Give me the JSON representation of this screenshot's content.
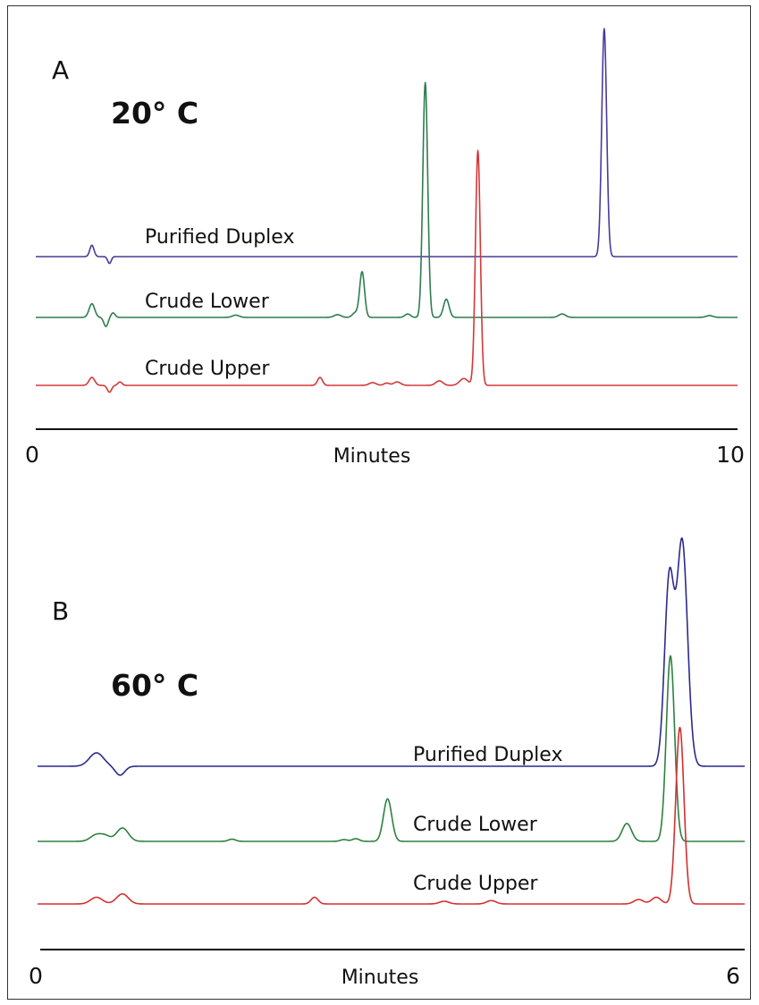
{
  "chart_data": [
    {
      "type": "line",
      "panel": "A",
      "title": "20° C",
      "xlabel": "Minutes",
      "x_ticks": [
        "0",
        "10"
      ],
      "xlim": [
        0,
        10
      ],
      "series": [
        {
          "name": "Purified Duplex",
          "color": "#4a3a9a",
          "baseline": 0,
          "peaks": [
            [
              0.8,
              0.03,
              5
            ],
            [
              1.05,
              0.025,
              -3
            ],
            [
              8.1,
              0.035,
              100
            ]
          ]
        },
        {
          "name": "Crude Lower",
          "color": "#2e7d4f",
          "baseline": 0,
          "peaks": [
            [
              0.8,
              0.04,
              6
            ],
            [
              1.0,
              0.03,
              -4
            ],
            [
              1.1,
              0.03,
              2
            ],
            [
              2.85,
              0.05,
              1
            ],
            [
              4.3,
              0.05,
              1.2
            ],
            [
              4.55,
              0.04,
              2
            ],
            [
              4.65,
              0.035,
              20
            ],
            [
              5.3,
              0.04,
              1.5
            ],
            [
              5.55,
              0.035,
              103
            ],
            [
              5.85,
              0.04,
              8
            ],
            [
              7.5,
              0.05,
              1.5
            ],
            [
              9.6,
              0.05,
              0.8
            ]
          ]
        },
        {
          "name": "Crude Upper",
          "color": "#d43838",
          "baseline": 0,
          "peaks": [
            [
              0.8,
              0.04,
              3.5
            ],
            [
              1.05,
              0.03,
              -3
            ],
            [
              1.2,
              0.03,
              1.5
            ],
            [
              4.05,
              0.035,
              3.5
            ],
            [
              4.8,
              0.05,
              1.2
            ],
            [
              5.0,
              0.04,
              1
            ],
            [
              5.15,
              0.05,
              1.5
            ],
            [
              5.75,
              0.05,
              2
            ],
            [
              6.1,
              0.06,
              3
            ],
            [
              6.3,
              0.035,
              103
            ]
          ]
        }
      ]
    },
    {
      "type": "line",
      "panel": "B",
      "title": "60° C",
      "xlabel": "Minutes",
      "x_ticks": [
        "0",
        "6"
      ],
      "xlim": [
        0,
        6
      ],
      "series": [
        {
          "name": "Purified Duplex",
          "color": "#2a2a8c",
          "baseline": 0,
          "peaks": [
            [
              0.5,
              0.06,
              6
            ],
            [
              0.7,
              0.04,
              -4
            ],
            [
              5.36,
              0.04,
              83
            ],
            [
              5.47,
              0.045,
              100
            ]
          ]
        },
        {
          "name": "Crude Lower",
          "color": "#2e8040",
          "baseline": 0,
          "peaks": [
            [
              0.5,
              0.05,
              3
            ],
            [
              0.58,
              0.04,
              2
            ],
            [
              0.72,
              0.05,
              6
            ],
            [
              1.65,
              0.03,
              1
            ],
            [
              2.6,
              0.03,
              0.8
            ],
            [
              2.7,
              0.03,
              1.2
            ],
            [
              2.97,
              0.035,
              19
            ],
            [
              5.0,
              0.04,
              8
            ],
            [
              5.37,
              0.035,
              83
            ]
          ]
        },
        {
          "name": "Crude Upper",
          "color": "#d43030",
          "baseline": 0,
          "peaks": [
            [
              0.5,
              0.05,
              3
            ],
            [
              0.72,
              0.05,
              4.5
            ],
            [
              2.35,
              0.03,
              3
            ],
            [
              3.45,
              0.04,
              1.2
            ],
            [
              3.85,
              0.04,
              1.5
            ],
            [
              5.1,
              0.04,
              2
            ],
            [
              5.25,
              0.04,
              3
            ],
            [
              5.45,
              0.035,
              79
            ]
          ]
        }
      ]
    }
  ]
}
